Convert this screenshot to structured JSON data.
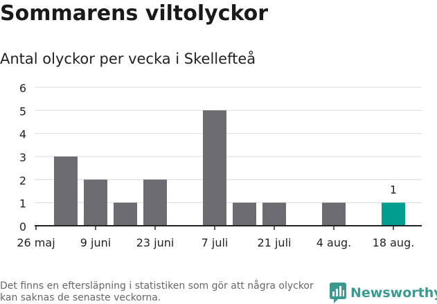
{
  "header": {
    "title": "Sommarens viltolyckor",
    "subtitle": "Antal olyckor per vecka i Skellefteå"
  },
  "footer": {
    "note": "Det finns en eftersläpning i statistiken som gör att några olyckor kan saknas de senaste veckorna.",
    "brand": "Newsworthy"
  },
  "colors": {
    "bar": "#6d6c71",
    "highlight": "#009e8e",
    "brand": "#3a9a8f"
  },
  "chart_data": {
    "type": "bar",
    "title": "Sommarens viltolyckor",
    "subtitle": "Antal olyckor per vecka i Skellefteå",
    "xlabel": "",
    "ylabel": "",
    "ylim": [
      0,
      6
    ],
    "yticks": [
      "0",
      "1",
      "2",
      "3",
      "4",
      "5",
      "6"
    ],
    "grid": true,
    "categories": [
      "26 maj",
      "2 juni",
      "9 juni",
      "16 juni",
      "23 juni",
      "30 juni",
      "7 juli",
      "14 juli",
      "21 juli",
      "28 juli",
      "4 aug.",
      "11 aug.",
      "18 aug."
    ],
    "values": [
      0,
      3,
      2,
      1,
      2,
      0,
      5,
      1,
      1,
      0,
      1,
      0,
      1
    ],
    "xtick_labels": [
      {
        "index": 0,
        "label": "26 maj"
      },
      {
        "index": 2,
        "label": "9 juni"
      },
      {
        "index": 4,
        "label": "23 juni"
      },
      {
        "index": 6,
        "label": "7 juli"
      },
      {
        "index": 8,
        "label": "21 juli"
      },
      {
        "index": 10,
        "label": "4 aug."
      },
      {
        "index": 12,
        "label": "18 aug."
      }
    ],
    "highlight_index": 12,
    "data_labels": [
      {
        "index": 12,
        "label": "1"
      }
    ]
  }
}
